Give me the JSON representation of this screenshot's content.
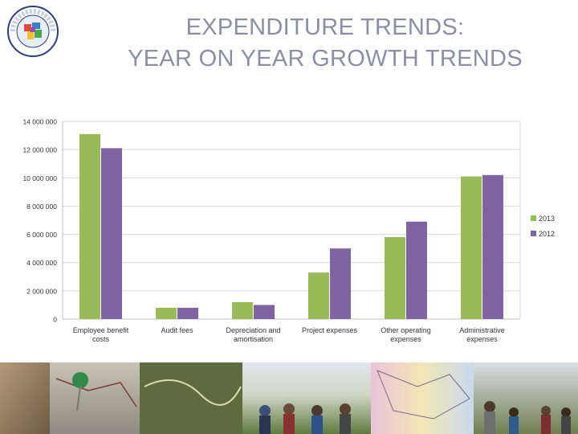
{
  "title": {
    "line1": "EXPENDITURE TRENDS:",
    "line2": "YEAR ON YEAR GROWTH TRENDS"
  },
  "logo": {
    "icon": "demarcation-board-seal-icon",
    "text": "DEMARCATION BOARD"
  },
  "chart_data": {
    "type": "bar",
    "categories": [
      [
        "Employee benefit",
        "costs"
      ],
      [
        "Audit fees"
      ],
      [
        "Depreciation and",
        "amortisation"
      ],
      [
        "Project expenses"
      ],
      [
        "Other operating",
        "expenses"
      ],
      [
        "Administrative",
        "expenses"
      ]
    ],
    "series": [
      {
        "name": "2013",
        "color": "#9bbb59",
        "values": [
          13100000,
          800000,
          1200000,
          3300000,
          5800000,
          10100000
        ]
      },
      {
        "name": "2012",
        "color": "#8064a2",
        "values": [
          12100000,
          800000,
          1000000,
          5000000,
          6900000,
          10200000
        ]
      }
    ],
    "yticks": [
      "0",
      "2 000 000",
      "4 000 000",
      "6 000 000",
      "8 000 000",
      "10 000 000",
      "12 000 000",
      "14 000 000"
    ],
    "ylim": [
      0,
      14000000
    ],
    "grid": true,
    "legend": "right"
  },
  "photo_strip": {
    "description_icon": "photo-collage-icon"
  }
}
